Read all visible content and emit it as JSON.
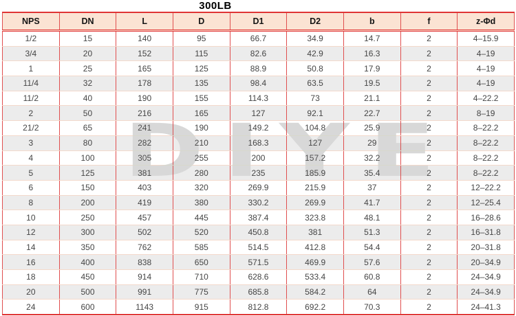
{
  "page": {
    "title": "300LB",
    "watermark": "DIYE"
  },
  "table": {
    "columns": [
      "NPS",
      "DN",
      "L",
      "D",
      "D1",
      "D2",
      "b",
      "f",
      "z-Φd"
    ],
    "rows": [
      [
        "1/2",
        "15",
        "140",
        "95",
        "66.7",
        "34.9",
        "14.7",
        "2",
        "4–15.9"
      ],
      [
        "3/4",
        "20",
        "152",
        "115",
        "82.6",
        "42.9",
        "16.3",
        "2",
        "4–19"
      ],
      [
        "1",
        "25",
        "165",
        "125",
        "88.9",
        "50.8",
        "17.9",
        "2",
        "4–19"
      ],
      [
        "11/4",
        "32",
        "178",
        "135",
        "98.4",
        "63.5",
        "19.5",
        "2",
        "4–19"
      ],
      [
        "11/2",
        "40",
        "190",
        "155",
        "114.3",
        "73",
        "21.1",
        "2",
        "4–22.2"
      ],
      [
        "2",
        "50",
        "216",
        "165",
        "127",
        "92.1",
        "22.7",
        "2",
        "8–19"
      ],
      [
        "21/2",
        "65",
        "241",
        "190",
        "149.2",
        "104.8",
        "25.9",
        "2",
        "8–22.2"
      ],
      [
        "3",
        "80",
        "282",
        "210",
        "168.3",
        "127",
        "29",
        "2",
        "8–22.2"
      ],
      [
        "4",
        "100",
        "305",
        "255",
        "200",
        "157.2",
        "32.2",
        "2",
        "8–22.2"
      ],
      [
        "5",
        "125",
        "381",
        "280",
        "235",
        "185.9",
        "35.4",
        "2",
        "8–22.2"
      ],
      [
        "6",
        "150",
        "403",
        "320",
        "269.9",
        "215.9",
        "37",
        "2",
        "12–22.2"
      ],
      [
        "8",
        "200",
        "419",
        "380",
        "330.2",
        "269.9",
        "41.7",
        "2",
        "12–25.4"
      ],
      [
        "10",
        "250",
        "457",
        "445",
        "387.4",
        "323.8",
        "48.1",
        "2",
        "16–28.6"
      ],
      [
        "12",
        "300",
        "502",
        "520",
        "450.8",
        "381",
        "51.3",
        "2",
        "16–31.8"
      ],
      [
        "14",
        "350",
        "762",
        "585",
        "514.5",
        "412.8",
        "54.4",
        "2",
        "20–31.8"
      ],
      [
        "16",
        "400",
        "838",
        "650",
        "571.5",
        "469.9",
        "57.6",
        "2",
        "20–34.9"
      ],
      [
        "18",
        "450",
        "914",
        "710",
        "628.6",
        "533.4",
        "60.8",
        "2",
        "24–34.9"
      ],
      [
        "20",
        "500",
        "991",
        "775",
        "685.8",
        "584.2",
        "64",
        "2",
        "24–34.9"
      ],
      [
        "24",
        "600",
        "1143",
        "915",
        "812.8",
        "692.2",
        "70.3",
        "2",
        "24–41.3"
      ]
    ]
  },
  "colors": {
    "border_red": "#df3434",
    "grid_red": "#e04e4e",
    "header_bg": "#fbe3d3",
    "alt_row_bg": "#ececec",
    "text": "#454545",
    "watermark_gray": "#d8d8d8"
  }
}
